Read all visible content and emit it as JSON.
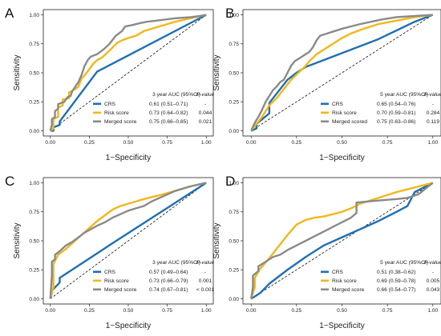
{
  "chart_data": [
    {
      "type": "line",
      "panel": "A",
      "xlabel": "1−Specificity",
      "ylabel": "Sensitivity",
      "xlim": [
        0,
        1
      ],
      "ylim": [
        0,
        1
      ],
      "xticks": [
        "0.00",
        "0.25",
        "0.50",
        "0.75",
        "1.00"
      ],
      "yticks": [
        "0.00",
        "0.25",
        "0.50",
        "0.75",
        "1.00"
      ],
      "legend_position": "bottom-right",
      "legend_header": {
        "auc": "3 year AUC (95%CI)",
        "p": "P-value"
      },
      "series": [
        {
          "name": "CRS",
          "color": "#1f6fb4",
          "auc": "0.61 (0.51–0.71)",
          "p": "-",
          "x": [
            0,
            0.02,
            0.02,
            0.06,
            0.06,
            0.3,
            1.0
          ],
          "y": [
            0,
            0,
            0.03,
            0.05,
            0.08,
            0.51,
            1.0
          ]
        },
        {
          "name": "Risk score",
          "color": "#f2b718",
          "auc": "0.73 (0.64–0.82)",
          "p": "0.044",
          "x": [
            0,
            0.02,
            0.02,
            0.05,
            0.05,
            0.08,
            0.08,
            0.12,
            0.12,
            0.16,
            0.18,
            0.2,
            0.22,
            0.25,
            0.27,
            0.3,
            0.33,
            0.37,
            0.4,
            0.43,
            0.46,
            0.5,
            0.55,
            0.6,
            0.7,
            0.8,
            0.9,
            1.0
          ],
          "y": [
            0,
            0.02,
            0.1,
            0.12,
            0.2,
            0.22,
            0.27,
            0.28,
            0.33,
            0.36,
            0.38,
            0.45,
            0.48,
            0.53,
            0.57,
            0.61,
            0.63,
            0.68,
            0.72,
            0.76,
            0.78,
            0.8,
            0.82,
            0.86,
            0.9,
            0.94,
            0.97,
            1.0
          ]
        },
        {
          "name": "Merged score",
          "color": "#8a8a8a",
          "auc": "0.75 (0.66–0.85)",
          "p": "0.021",
          "x": [
            0,
            0.01,
            0.01,
            0.03,
            0.03,
            0.05,
            0.05,
            0.07,
            0.09,
            0.11,
            0.13,
            0.14,
            0.16,
            0.18,
            0.2,
            0.22,
            0.24,
            0.26,
            0.3,
            0.34,
            0.38,
            0.42,
            0.46,
            0.48,
            0.52,
            0.58,
            0.62,
            0.68,
            0.74,
            0.8,
            0.9,
            0.96,
            1.0
          ],
          "y": [
            0,
            0.05,
            0.1,
            0.12,
            0.17,
            0.19,
            0.23,
            0.24,
            0.25,
            0.29,
            0.3,
            0.34,
            0.38,
            0.42,
            0.48,
            0.56,
            0.61,
            0.64,
            0.66,
            0.7,
            0.75,
            0.82,
            0.86,
            0.9,
            0.91,
            0.93,
            0.94,
            0.95,
            0.96,
            0.97,
            0.98,
            0.99,
            1.0
          ]
        }
      ]
    },
    {
      "type": "line",
      "panel": "B",
      "xlabel": "1−Specificity",
      "ylabel": "Sensitivity",
      "xlim": [
        0,
        1
      ],
      "ylim": [
        0,
        1
      ],
      "xticks": [
        "0.00",
        "0.25",
        "0.50",
        "0.75",
        "1.00"
      ],
      "yticks": [
        "0.00",
        "0.25",
        "0.50",
        "0.75",
        "1.00"
      ],
      "legend_position": "bottom-right",
      "legend_header": {
        "auc": "5 year AUC (95%CI)",
        "p": "P-value"
      },
      "series": [
        {
          "name": "CRS",
          "color": "#1f6fb4",
          "auc": "0.65 (0.54–0.76)",
          "p": "-",
          "x": [
            0,
            0.03,
            0.03,
            0.1,
            0.1,
            0.2,
            0.25,
            0.3,
            0.5,
            0.7,
            0.9,
            1.0
          ],
          "y": [
            0,
            0.02,
            0.06,
            0.15,
            0.24,
            0.44,
            0.5,
            0.55,
            0.67,
            0.79,
            0.94,
            1.0
          ]
        },
        {
          "name": "Risk score",
          "color": "#f2b718",
          "auc": "0.70 (0.59–0.81)",
          "p": "0.284",
          "x": [
            0,
            0.02,
            0.04,
            0.06,
            0.08,
            0.1,
            0.12,
            0.14,
            0.16,
            0.18,
            0.2,
            0.22,
            0.24,
            0.26,
            0.28,
            0.3,
            0.32,
            0.36,
            0.4,
            0.45,
            0.5,
            0.55,
            0.62,
            0.7,
            0.8,
            0.9,
            1.0
          ],
          "y": [
            0,
            0.04,
            0.08,
            0.12,
            0.17,
            0.22,
            0.25,
            0.28,
            0.32,
            0.36,
            0.4,
            0.44,
            0.47,
            0.5,
            0.53,
            0.56,
            0.6,
            0.66,
            0.7,
            0.75,
            0.8,
            0.84,
            0.88,
            0.92,
            0.95,
            0.98,
            1.0
          ]
        },
        {
          "name": "Merged scored",
          "color": "#8a8a8a",
          "auc": "0.75 (0.63–0.86)",
          "p": "0.119",
          "x": [
            0,
            0.02,
            0.04,
            0.06,
            0.08,
            0.1,
            0.12,
            0.14,
            0.16,
            0.18,
            0.2,
            0.22,
            0.24,
            0.26,
            0.28,
            0.3,
            0.32,
            0.34,
            0.36,
            0.38,
            0.42,
            0.46,
            0.5,
            0.55,
            0.6,
            0.66,
            0.72,
            0.8,
            0.9,
            1.0
          ],
          "y": [
            0,
            0.07,
            0.12,
            0.18,
            0.25,
            0.3,
            0.35,
            0.38,
            0.42,
            0.44,
            0.5,
            0.56,
            0.6,
            0.62,
            0.64,
            0.66,
            0.68,
            0.72,
            0.78,
            0.82,
            0.84,
            0.86,
            0.88,
            0.9,
            0.92,
            0.94,
            0.96,
            0.98,
            0.99,
            1.0
          ]
        }
      ]
    },
    {
      "type": "line",
      "panel": "C",
      "xlabel": "1−Specificity",
      "ylabel": "Sensitivity",
      "xlim": [
        0,
        1
      ],
      "ylim": [
        0,
        1
      ],
      "xticks": [
        "0.00",
        "0.25",
        "0.50",
        "0.75",
        "1.00"
      ],
      "yticks": [
        "0.00",
        "0.25",
        "0.50",
        "0.75",
        "1.00"
      ],
      "legend_position": "bottom-right",
      "legend_header": {
        "auc": "3 year AUC (95%CI)",
        "p": "P-value"
      },
      "series": [
        {
          "name": "CRS",
          "color": "#1f6fb4",
          "auc": "0.57 (0.49–0.64)",
          "p": "-",
          "x": [
            0,
            0.01,
            0.01,
            0.06,
            0.06,
            0.4,
            1.0
          ],
          "y": [
            0,
            0.05,
            0.07,
            0.14,
            0.18,
            0.48,
            1.0
          ]
        },
        {
          "name": "Risk score",
          "color": "#f2b718",
          "auc": "0.73 (0.66–0.79)",
          "p": "0.001",
          "x": [
            0,
            0.02,
            0.02,
            0.05,
            0.1,
            0.15,
            0.2,
            0.25,
            0.3,
            0.35,
            0.4,
            0.45,
            0.5,
            0.55,
            0.6,
            0.66,
            0.72,
            0.8,
            0.9,
            1.0
          ],
          "y": [
            0,
            0.1,
            0.3,
            0.38,
            0.43,
            0.49,
            0.55,
            0.61,
            0.67,
            0.72,
            0.77,
            0.8,
            0.82,
            0.84,
            0.86,
            0.88,
            0.9,
            0.93,
            0.97,
            1.0
          ]
        },
        {
          "name": "Merged score",
          "color": "#8a8a8a",
          "auc": "0.74 (0.67–0.81)",
          "p": "< 0.001",
          "x": [
            0,
            0.01,
            0.01,
            0.03,
            0.03,
            0.06,
            0.1,
            0.14,
            0.18,
            0.22,
            0.26,
            0.3,
            0.35,
            0.4,
            0.45,
            0.5,
            0.55,
            0.6,
            0.65,
            0.7,
            0.75,
            0.8,
            0.85,
            0.9,
            1.0
          ],
          "y": [
            0,
            0.2,
            0.32,
            0.34,
            0.38,
            0.41,
            0.46,
            0.49,
            0.53,
            0.57,
            0.6,
            0.63,
            0.66,
            0.7,
            0.73,
            0.76,
            0.78,
            0.8,
            0.84,
            0.87,
            0.9,
            0.93,
            0.95,
            0.97,
            1.0
          ]
        }
      ]
    },
    {
      "type": "line",
      "panel": "D",
      "xlabel": "1−Specificity",
      "ylabel": "Sensitivity",
      "xlim": [
        0,
        1
      ],
      "ylim": [
        0,
        1
      ],
      "xticks": [
        "0.00",
        "0.25",
        "0.50",
        "0.75",
        "1.00"
      ],
      "yticks": [
        "0.00",
        "0.25",
        "0.50",
        "0.75",
        "1.00"
      ],
      "legend_position": "bottom-right",
      "legend_header": {
        "auc": "5 year AUC (95%CI)",
        "p": "P-value"
      },
      "series": [
        {
          "name": "CRS",
          "color": "#1f6fb4",
          "auc": "0.51 (0.38–0.62)",
          "p": "-",
          "x": [
            0,
            0.05,
            0.1,
            0.2,
            0.3,
            0.4,
            0.5,
            0.6,
            0.7,
            0.8,
            0.86,
            0.9,
            1.0
          ],
          "y": [
            0,
            0.05,
            0.13,
            0.25,
            0.36,
            0.46,
            0.53,
            0.6,
            0.67,
            0.75,
            0.8,
            0.92,
            1.0
          ]
        },
        {
          "name": "Risk score",
          "color": "#f2b718",
          "auc": "0.69 (0.59–0.78)",
          "p": "0.005",
          "x": [
            0,
            0.02,
            0.02,
            0.05,
            0.1,
            0.15,
            0.2,
            0.25,
            0.3,
            0.35,
            0.4,
            0.45,
            0.5,
            0.55,
            0.6,
            0.7,
            0.8,
            0.9,
            1.0
          ],
          "y": [
            0,
            0.1,
            0.18,
            0.26,
            0.35,
            0.45,
            0.55,
            0.64,
            0.68,
            0.7,
            0.71,
            0.73,
            0.75,
            0.78,
            0.82,
            0.87,
            0.92,
            0.96,
            1.0
          ]
        },
        {
          "name": "Merged score",
          "color": "#8a8a8a",
          "auc": "0.66 (0.54–0.77)",
          "p": "0.043",
          "x": [
            0,
            0.01,
            0.01,
            0.04,
            0.04,
            0.08,
            0.12,
            0.16,
            0.2,
            0.25,
            0.3,
            0.35,
            0.4,
            0.45,
            0.5,
            0.55,
            0.58,
            0.58,
            0.65,
            0.72,
            0.8,
            0.86,
            0.92,
            1.0
          ],
          "y": [
            0,
            0.1,
            0.2,
            0.24,
            0.28,
            0.32,
            0.36,
            0.38,
            0.42,
            0.46,
            0.5,
            0.54,
            0.58,
            0.62,
            0.66,
            0.7,
            0.74,
            0.83,
            0.84,
            0.85,
            0.86,
            0.87,
            0.9,
            1.0
          ]
        }
      ]
    }
  ]
}
